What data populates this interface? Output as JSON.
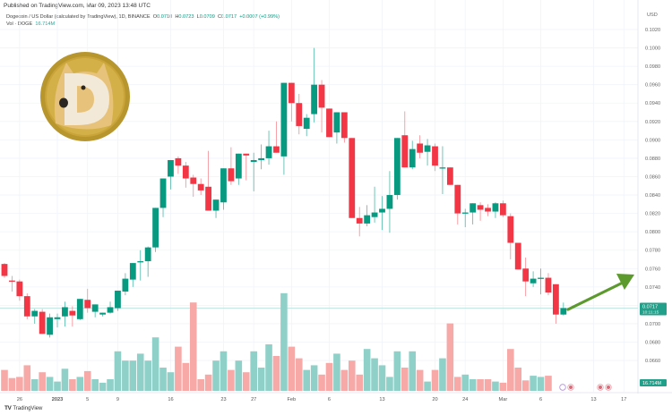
{
  "header": {
    "published": "Published on TradingView.com, Mar 09, 2023 13:48 UTC",
    "symbol_line": "Dogecoin / US Dollar (calculated by TradingView), 1D, BINANCE",
    "o_label": "O",
    "o_value": "0.0710",
    "h_label": "H",
    "h_value": "0.0723",
    "l_label": "L",
    "l_value": "0.0709",
    "c_label": "C",
    "c_value": "0.0717",
    "change": "+0.0007 (+0.99%)",
    "vol_label": "Vol · DOGE",
    "vol_value": "16.714M"
  },
  "price_axis": {
    "currency": "USD",
    "current_price": "0.0717",
    "countdown": "10:11:15",
    "volume_tag": "16.714M"
  },
  "footer": {
    "brand": "TradingView"
  },
  "colors": {
    "up": "#089981",
    "down": "#f23645",
    "vol_up": "#8fd0c8",
    "vol_down": "#f7a9a8",
    "arrow": "#5c9a2e",
    "grid": "#f0f3fa"
  },
  "chart_data": {
    "type": "candlestick",
    "title": "Dogecoin / US Dollar (calculated by TradingView), 1D, BINANCE",
    "ylabel": "USD",
    "ylim": [
      0.0676,
      0.1032
    ],
    "y_ticks": [
      "0.1020",
      "0.1000",
      "0.0980",
      "0.0960",
      "0.0940",
      "0.0920",
      "0.0900",
      "0.0880",
      "0.0860",
      "0.0840",
      "0.0820",
      "0.0800",
      "0.0780",
      "0.0760",
      "0.0740",
      "0.0720",
      "0.0700",
      "0.0680",
      "0.0660"
    ],
    "x_ticks": [
      {
        "label": "26",
        "i": 2
      },
      {
        "label": "2023",
        "i": 7
      },
      {
        "label": "5",
        "i": 11
      },
      {
        "label": "9",
        "i": 15
      },
      {
        "label": "16",
        "i": 22
      },
      {
        "label": "23",
        "i": 29
      },
      {
        "label": "27",
        "i": 33
      },
      {
        "label": "Feb",
        "i": 38
      },
      {
        "label": "6",
        "i": 43
      },
      {
        "label": "13",
        "i": 50
      },
      {
        "label": "20",
        "i": 57
      },
      {
        "label": "24",
        "i": 61
      },
      {
        "label": "Mar",
        "i": 66
      },
      {
        "label": "6",
        "i": 71
      },
      {
        "label": "13",
        "i": 78
      },
      {
        "label": "17",
        "i": 82
      }
    ],
    "candles": [
      [
        0.0765,
        0.0766,
        0.075,
        0.0752,
        0.9
      ],
      [
        0.0747,
        0.0752,
        0.0735,
        0.0746,
        0.55
      ],
      [
        0.0746,
        0.0748,
        0.0725,
        0.073,
        0.6
      ],
      [
        0.073,
        0.0733,
        0.0705,
        0.0708,
        1.1
      ],
      [
        0.0708,
        0.0716,
        0.07,
        0.0714,
        0.5
      ],
      [
        0.0713,
        0.0716,
        0.069,
        0.0689,
        0.8
      ],
      [
        0.0688,
        0.0711,
        0.0685,
        0.0707,
        0.6
      ],
      [
        0.0705,
        0.0711,
        0.0696,
        0.0707,
        0.4
      ],
      [
        0.0708,
        0.0724,
        0.0697,
        0.0718,
        0.95
      ],
      [
        0.0714,
        0.0719,
        0.0697,
        0.0709,
        0.5
      ],
      [
        0.0705,
        0.0727,
        0.0704,
        0.0727,
        0.6
      ],
      [
        0.0726,
        0.0738,
        0.0712,
        0.0717,
        0.85
      ],
      [
        0.0713,
        0.072,
        0.0707,
        0.0721,
        0.5
      ],
      [
        0.071,
        0.0711,
        0.0708,
        0.0712,
        0.35
      ],
      [
        0.0712,
        0.0724,
        0.0711,
        0.0718,
        0.5
      ],
      [
        0.0717,
        0.0732,
        0.0714,
        0.0736,
        1.7
      ],
      [
        0.0735,
        0.0755,
        0.0731,
        0.0749,
        1.3
      ],
      [
        0.0748,
        0.0764,
        0.074,
        0.0766,
        1.3
      ],
      [
        0.0767,
        0.078,
        0.0747,
        0.0768,
        1.6
      ],
      [
        0.0768,
        0.0784,
        0.0751,
        0.0783,
        1.3
      ],
      [
        0.0783,
        0.0811,
        0.0778,
        0.0826,
        2.3
      ],
      [
        0.0826,
        0.0845,
        0.0816,
        0.0858,
        1.0
      ],
      [
        0.086,
        0.087,
        0.0846,
        0.0878,
        0.8
      ],
      [
        0.088,
        0.0882,
        0.0863,
        0.0872,
        1.9
      ],
      [
        0.0872,
        0.0876,
        0.0848,
        0.0858,
        1.2
      ],
      [
        0.0859,
        0.0862,
        0.0838,
        0.0852,
        3.8
      ],
      [
        0.0852,
        0.0858,
        0.084,
        0.0845,
        0.5
      ],
      [
        0.0849,
        0.0888,
        0.0826,
        0.0823,
        0.7
      ],
      [
        0.0823,
        0.0829,
        0.0815,
        0.0835,
        1.3
      ],
      [
        0.0832,
        0.0864,
        0.0824,
        0.0869,
        1.7
      ],
      [
        0.0869,
        0.0892,
        0.0851,
        0.0855,
        0.9
      ],
      [
        0.0858,
        0.0881,
        0.0851,
        0.0885,
        1.3
      ],
      [
        0.0885,
        0.0885,
        0.0856,
        0.0883,
        0.8
      ],
      [
        0.0876,
        0.0886,
        0.0844,
        0.0878,
        1.7
      ],
      [
        0.0878,
        0.0895,
        0.0868,
        0.088,
        1.0
      ],
      [
        0.088,
        0.091,
        0.0873,
        0.0893,
        2.0
      ],
      [
        0.0893,
        0.092,
        0.089,
        0.0886,
        1.5
      ],
      [
        0.0882,
        0.0961,
        0.0862,
        0.0962,
        4.2
      ],
      [
        0.0962,
        0.0955,
        0.092,
        0.094,
        1.9
      ],
      [
        0.094,
        0.095,
        0.0906,
        0.0915,
        1.4
      ],
      [
        0.0912,
        0.0928,
        0.0904,
        0.0924,
        0.9
      ],
      [
        0.0928,
        0.1,
        0.0919,
        0.096,
        1.1
      ],
      [
        0.096,
        0.0965,
        0.0908,
        0.0935,
        0.7
      ],
      [
        0.0934,
        0.093,
        0.0903,
        0.0903,
        1.2
      ],
      [
        0.0908,
        0.0921,
        0.0896,
        0.093,
        1.6
      ],
      [
        0.093,
        0.0925,
        0.0897,
        0.0902,
        0.9
      ],
      [
        0.0902,
        0.0882,
        0.0815,
        0.0815,
        1.3
      ],
      [
        0.0815,
        0.0827,
        0.0795,
        0.0809,
        0.7
      ],
      [
        0.0809,
        0.0829,
        0.0806,
        0.0818,
        1.8
      ],
      [
        0.0816,
        0.0849,
        0.081,
        0.0821,
        1.4
      ],
      [
        0.0821,
        0.0839,
        0.0802,
        0.0825,
        1.1
      ],
      [
        0.0825,
        0.0866,
        0.0799,
        0.084,
        0.6
      ],
      [
        0.084,
        0.0898,
        0.0835,
        0.0902,
        1.7
      ],
      [
        0.0905,
        0.0931,
        0.0888,
        0.087,
        1.0
      ],
      [
        0.087,
        0.0899,
        0.0868,
        0.089,
        1.7
      ],
      [
        0.0896,
        0.0905,
        0.088,
        0.0886,
        0.9
      ],
      [
        0.0887,
        0.0901,
        0.0872,
        0.0894,
        0.4
      ],
      [
        0.0893,
        0.0896,
        0.0866,
        0.0872,
        0.9
      ],
      [
        0.087,
        0.0893,
        0.0841,
        0.087,
        1.4
      ],
      [
        0.087,
        0.086,
        0.086,
        0.0851,
        2.9
      ],
      [
        0.0851,
        0.0849,
        0.0808,
        0.082,
        0.6
      ],
      [
        0.082,
        0.0825,
        0.0805,
        0.0821,
        0.7
      ],
      [
        0.0821,
        0.0829,
        0.0808,
        0.0831,
        0.5
      ],
      [
        0.0829,
        0.0832,
        0.0812,
        0.0824,
        0.5
      ],
      [
        0.0826,
        0.083,
        0.0817,
        0.0822,
        0.5
      ],
      [
        0.0822,
        0.0832,
        0.0815,
        0.0831,
        0.4
      ],
      [
        0.0831,
        0.0834,
        0.0816,
        0.0818,
        0.35
      ],
      [
        0.0817,
        0.082,
        0.077,
        0.0788,
        1.8
      ],
      [
        0.0788,
        0.0784,
        0.0762,
        0.0759,
        1.0
      ],
      [
        0.076,
        0.0772,
        0.073,
        0.0746,
        0.45
      ],
      [
        0.0744,
        0.0757,
        0.074,
        0.0749,
        0.65
      ],
      [
        0.0749,
        0.076,
        0.0732,
        0.075,
        0.6
      ],
      [
        0.075,
        0.0755,
        0.0731,
        0.0734,
        0.65
      ],
      [
        0.0743,
        0.0738,
        0.07,
        0.071,
        0.0
      ],
      [
        0.071,
        0.0723,
        0.0709,
        0.0717,
        0.0
      ]
    ],
    "annotation": "Green upward arrow from latest candle indicating expected rise"
  }
}
